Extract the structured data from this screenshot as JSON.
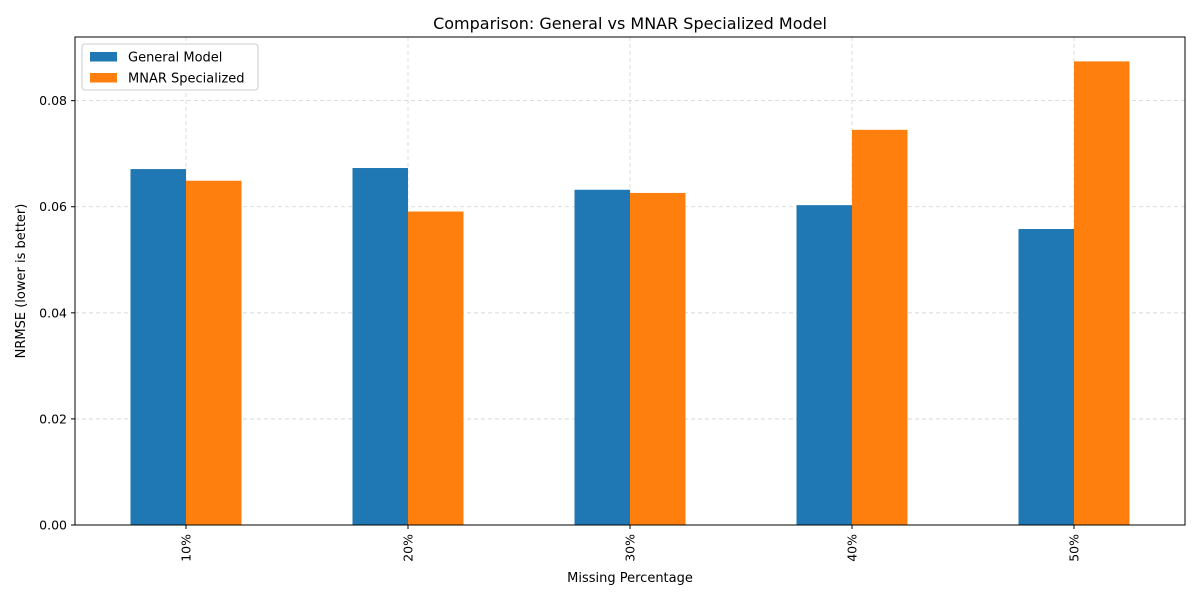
{
  "chart_data": {
    "type": "bar",
    "title": "Comparison: General vs MNAR Specialized Model",
    "xlabel": "Missing Percentage",
    "ylabel": "NRMSE (lower is better)",
    "categories": [
      "10%",
      "20%",
      "30%",
      "40%",
      "50%"
    ],
    "series": [
      {
        "name": "General Model",
        "color": "#1f77b4",
        "values": [
          0.0671,
          0.0673,
          0.0632,
          0.0603,
          0.0558
        ]
      },
      {
        "name": "MNAR Specialized",
        "color": "#ff7f0e",
        "values": [
          0.0649,
          0.0591,
          0.0626,
          0.0745,
          0.0874
        ]
      }
    ],
    "ylim": [
      0,
      0.092
    ],
    "yticks": [
      0.0,
      0.02,
      0.04,
      0.06,
      0.08
    ],
    "ytick_labels": [
      "0.00",
      "0.02",
      "0.04",
      "0.06",
      "0.08"
    ],
    "xtick_rotation": "vertical",
    "grid": true,
    "legend_position": "top-left"
  }
}
